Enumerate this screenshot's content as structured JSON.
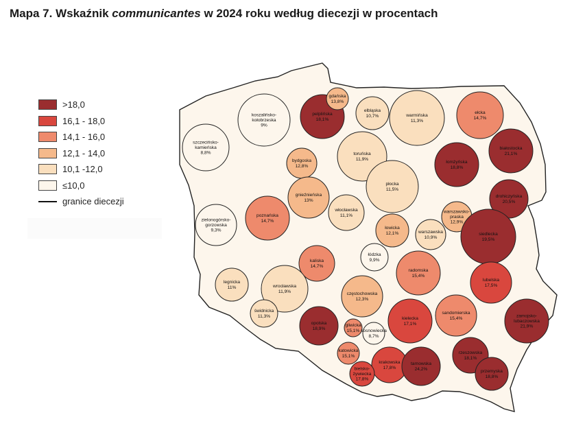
{
  "title": {
    "prefix": "Mapa 7. Wskaźnik ",
    "emph": "communicantes",
    "suffix": " w 2024 roku według diecezji w procentach"
  },
  "legend": [
    {
      "label": ">18,0",
      "color": "#9a2d2f"
    },
    {
      "label": "16,1 - 18,0",
      "color": "#d9473e"
    },
    {
      "label": "14,1 - 16,0",
      "color": "#ee8a6c"
    },
    {
      "label": "12,1 - 14,0",
      "color": "#f5b98b"
    },
    {
      "label": "10,1 -12,0",
      "color": "#fadfbe"
    },
    {
      "label": "≤10,0",
      "color": "#fdf6ec"
    }
  ],
  "border_label": "granice diecezji",
  "dioceses": [
    {
      "name": "pelplińska",
      "value": "18,1%"
    },
    {
      "name": "gdańska",
      "value": "13,8%"
    },
    {
      "name": "elbląska",
      "value": "10,7%"
    },
    {
      "name": "warmińska",
      "value": "11,3%"
    },
    {
      "name": "ełcka",
      "value": "14,7%"
    },
    {
      "name": "koszalińsko-kołobrzeska",
      "value": "9%"
    },
    {
      "name": "szczecińsko-kamieńska",
      "value": "8,8%"
    },
    {
      "name": "bydgoska",
      "value": "12,8%"
    },
    {
      "name": "toruńska",
      "value": "11,9%"
    },
    {
      "name": "łomżyńska",
      "value": "18,8%"
    },
    {
      "name": "białostocka",
      "value": "21,1%"
    },
    {
      "name": "drohiczyńska",
      "value": "20,5%"
    },
    {
      "name": "gnieźnieńska",
      "value": "13%"
    },
    {
      "name": "płocka",
      "value": "11,5%"
    },
    {
      "name": "warszawsko-praska",
      "value": "12,9%"
    },
    {
      "name": "poznańska",
      "value": "14,7%"
    },
    {
      "name": "włocławska",
      "value": "11,1%"
    },
    {
      "name": "łowicka",
      "value": "12,1%"
    },
    {
      "name": "warszawska",
      "value": "10,9%"
    },
    {
      "name": "siedlecka",
      "value": "19,5%"
    },
    {
      "name": "zielonogórsko-gorzowska",
      "value": "9,3%"
    },
    {
      "name": "łódzka",
      "value": "9,9%"
    },
    {
      "name": "kaliska",
      "value": "14,7%"
    },
    {
      "name": "radomska",
      "value": "15,4%"
    },
    {
      "name": "lubelska",
      "value": "17,5%"
    },
    {
      "name": "legnicka",
      "value": "11%"
    },
    {
      "name": "wrocławska",
      "value": "11,9%"
    },
    {
      "name": "częstochowska",
      "value": "12,3%"
    },
    {
      "name": "świdnicka",
      "value": "11,3%"
    },
    {
      "name": "opolska",
      "value": "18,9%"
    },
    {
      "name": "kielecka",
      "value": "17,1%"
    },
    {
      "name": "sandomierska",
      "value": "15,4%"
    },
    {
      "name": "zamojsko-lubaczowska",
      "value": "21,9%"
    },
    {
      "name": "gliwicka",
      "value": "15,1%"
    },
    {
      "name": "sosnowiecka",
      "value": "8,7%"
    },
    {
      "name": "katowicka",
      "value": "15,1%"
    },
    {
      "name": "krakowska",
      "value": "17,8%"
    },
    {
      "name": "bielsko-żywiecka",
      "value": "17,8%"
    },
    {
      "name": "tarnowska",
      "value": "24,2%"
    },
    {
      "name": "rzeszowska",
      "value": "18,1%"
    },
    {
      "name": "przemyska",
      "value": "18,8%"
    }
  ]
}
